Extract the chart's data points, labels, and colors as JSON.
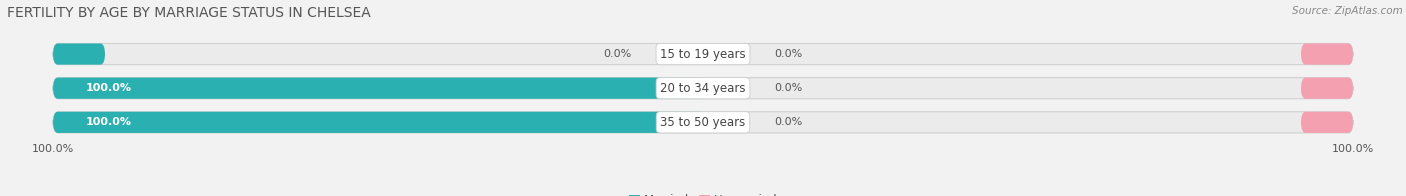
{
  "title": "FERTILITY BY AGE BY MARRIAGE STATUS IN CHELSEA",
  "source": "Source: ZipAtlas.com",
  "categories": [
    "15 to 19 years",
    "20 to 34 years",
    "35 to 50 years"
  ],
  "married_values": [
    0.0,
    100.0,
    100.0
  ],
  "unmarried_values": [
    0.0,
    0.0,
    0.0
  ],
  "married_color": "#2ab0b0",
  "unmarried_color": "#f4a0b0",
  "bar_bg_color": "#ebebeb",
  "bar_border_color": "#d0d0d0",
  "title_fontsize": 10,
  "label_fontsize": 8,
  "tick_fontsize": 8,
  "legend_fontsize": 8.5,
  "background_color": "#f2f2f2",
  "text_color": "#555555",
  "white": "#ffffff"
}
